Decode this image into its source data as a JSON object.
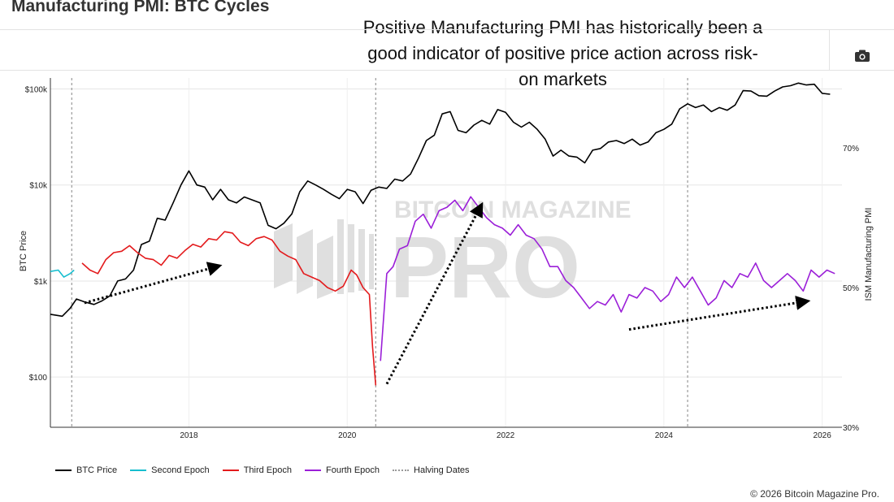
{
  "header": {
    "title": "Manufacturing PMI: BTC Cycles",
    "annotation": "Positive Manufacturing PMI has historically been a good indicator of positive price action across risk-on markets",
    "camera_icon": "camera-icon"
  },
  "watermark": {
    "line1": "BITCOIN MAGAZINE",
    "line2": "PRO"
  },
  "copyright": "© 2026 Bitcoin Magazine Pro.",
  "colors": {
    "btc": "#000000",
    "second_epoch": "#17becf",
    "third_epoch": "#e31a1c",
    "fourth_epoch": "#9b1fd8",
    "halving": "#999999",
    "arrow": "#000000"
  },
  "chart_data": {
    "type": "line",
    "title": "Manufacturing PMI: BTC Cycles",
    "xlim": [
      2016.25,
      2026.25
    ],
    "x_ticks": [
      2018,
      2020,
      2022,
      2024,
      2026
    ],
    "y_left": {
      "label": "BTC Price",
      "scale": "log",
      "range": [
        30,
        130000
      ],
      "ticks": [
        100,
        1000,
        10000,
        100000
      ],
      "tick_labels": [
        "$100",
        "$1k",
        "$10k",
        "$100k"
      ]
    },
    "y_right": {
      "label": "ISM Manufacturing PMI",
      "range": [
        30,
        80
      ],
      "ticks": [
        30,
        50,
        70
      ],
      "tick_labels": [
        "30%",
        "50%",
        "70%"
      ]
    },
    "halving_dates": [
      2016.52,
      2020.36,
      2024.3
    ],
    "series": [
      {
        "name": "BTC Price",
        "axis": "left",
        "points": [
          [
            2016.25,
            450
          ],
          [
            2016.4,
            430
          ],
          [
            2016.5,
            520
          ],
          [
            2016.58,
            650
          ],
          [
            2016.67,
            610
          ],
          [
            2016.8,
            570
          ],
          [
            2016.9,
            620
          ],
          [
            2017.0,
            700
          ],
          [
            2017.1,
            1000
          ],
          [
            2017.2,
            1050
          ],
          [
            2017.3,
            1300
          ],
          [
            2017.4,
            2400
          ],
          [
            2017.5,
            2600
          ],
          [
            2017.6,
            4500
          ],
          [
            2017.7,
            4300
          ],
          [
            2017.8,
            6500
          ],
          [
            2017.9,
            10000
          ],
          [
            2018.0,
            14000
          ],
          [
            2018.1,
            10000
          ],
          [
            2018.2,
            9500
          ],
          [
            2018.3,
            7000
          ],
          [
            2018.4,
            9000
          ],
          [
            2018.5,
            7000
          ],
          [
            2018.6,
            6500
          ],
          [
            2018.7,
            7500
          ],
          [
            2018.9,
            6500
          ],
          [
            2019.0,
            3800
          ],
          [
            2019.1,
            3500
          ],
          [
            2019.2,
            4000
          ],
          [
            2019.3,
            5000
          ],
          [
            2019.4,
            8500
          ],
          [
            2019.5,
            11000
          ],
          [
            2019.6,
            10000
          ],
          [
            2019.7,
            9000
          ],
          [
            2019.8,
            8000
          ],
          [
            2019.9,
            7200
          ],
          [
            2020.0,
            9000
          ],
          [
            2020.1,
            8500
          ],
          [
            2020.2,
            6400
          ],
          [
            2020.3,
            8800
          ],
          [
            2020.4,
            9500
          ],
          [
            2020.5,
            9200
          ],
          [
            2020.6,
            11500
          ],
          [
            2020.7,
            11000
          ],
          [
            2020.8,
            13000
          ],
          [
            2020.9,
            19000
          ],
          [
            2021.0,
            29000
          ],
          [
            2021.1,
            33000
          ],
          [
            2021.2,
            55000
          ],
          [
            2021.3,
            58000
          ],
          [
            2021.4,
            37000
          ],
          [
            2021.5,
            35000
          ],
          [
            2021.6,
            42000
          ],
          [
            2021.7,
            47000
          ],
          [
            2021.8,
            43000
          ],
          [
            2021.9,
            61000
          ],
          [
            2022.0,
            57000
          ],
          [
            2022.1,
            45000
          ],
          [
            2022.2,
            40000
          ],
          [
            2022.3,
            45000
          ],
          [
            2022.4,
            38000
          ],
          [
            2022.5,
            30000
          ],
          [
            2022.6,
            20000
          ],
          [
            2022.7,
            23000
          ],
          [
            2022.8,
            20000
          ],
          [
            2022.9,
            19500
          ],
          [
            2023.0,
            17000
          ],
          [
            2023.1,
            23000
          ],
          [
            2023.2,
            24000
          ],
          [
            2023.3,
            28000
          ],
          [
            2023.4,
            29000
          ],
          [
            2023.5,
            27000
          ],
          [
            2023.6,
            30000
          ],
          [
            2023.7,
            26000
          ],
          [
            2023.8,
            28000
          ],
          [
            2023.9,
            35000
          ],
          [
            2024.0,
            38000
          ],
          [
            2024.1,
            43000
          ],
          [
            2024.2,
            62000
          ],
          [
            2024.3,
            70000
          ],
          [
            2024.4,
            64000
          ],
          [
            2024.5,
            68000
          ],
          [
            2024.6,
            58000
          ],
          [
            2024.7,
            64000
          ],
          [
            2024.8,
            60000
          ],
          [
            2024.9,
            68000
          ],
          [
            2025.0,
            96000
          ],
          [
            2025.1,
            95000
          ],
          [
            2025.2,
            85000
          ],
          [
            2025.3,
            84000
          ],
          [
            2025.4,
            95000
          ],
          [
            2025.5,
            105000
          ],
          [
            2025.6,
            108000
          ],
          [
            2025.7,
            115000
          ],
          [
            2025.8,
            110000
          ],
          [
            2025.9,
            112000
          ],
          [
            2026.0,
            90000
          ],
          [
            2026.1,
            88000
          ]
        ]
      },
      {
        "name": "Second Epoch",
        "axis": "right",
        "points": [
          [
            2016.25,
            52.3
          ],
          [
            2016.35,
            52.5
          ],
          [
            2016.42,
            51.5
          ],
          [
            2016.5,
            52.0
          ],
          [
            2016.55,
            52.5
          ]
        ]
      },
      {
        "name": "Third Epoch",
        "axis": "right",
        "points": [
          [
            2016.65,
            53.5
          ],
          [
            2016.75,
            52.5
          ],
          [
            2016.85,
            52.0
          ],
          [
            2016.95,
            54.0
          ],
          [
            2017.05,
            55.0
          ],
          [
            2017.15,
            55.2
          ],
          [
            2017.25,
            56.0
          ],
          [
            2017.35,
            55.0
          ],
          [
            2017.45,
            54.2
          ],
          [
            2017.55,
            54.0
          ],
          [
            2017.65,
            53.2
          ],
          [
            2017.75,
            54.6
          ],
          [
            2017.85,
            54.2
          ],
          [
            2017.95,
            55.3
          ],
          [
            2018.05,
            56.2
          ],
          [
            2018.15,
            55.8
          ],
          [
            2018.25,
            57.0
          ],
          [
            2018.35,
            56.8
          ],
          [
            2018.45,
            58.0
          ],
          [
            2018.55,
            57.8
          ],
          [
            2018.65,
            56.5
          ],
          [
            2018.75,
            56.0
          ],
          [
            2018.85,
            57.0
          ],
          [
            2018.95,
            57.3
          ],
          [
            2019.05,
            56.8
          ],
          [
            2019.15,
            55.2
          ],
          [
            2019.25,
            54.5
          ],
          [
            2019.35,
            54.0
          ],
          [
            2019.45,
            52.0
          ],
          [
            2019.55,
            51.5
          ],
          [
            2019.65,
            51.0
          ],
          [
            2019.75,
            50.0
          ],
          [
            2019.85,
            49.5
          ],
          [
            2019.95,
            50.2
          ],
          [
            2020.05,
            52.5
          ],
          [
            2020.12,
            51.8
          ],
          [
            2020.2,
            50.0
          ],
          [
            2020.28,
            49.0
          ],
          [
            2020.32,
            41.5
          ],
          [
            2020.36,
            36.0
          ]
        ]
      },
      {
        "name": "Fourth Epoch",
        "axis": "right",
        "points": [
          [
            2020.42,
            39.5
          ],
          [
            2020.5,
            52.0
          ],
          [
            2020.58,
            53.0
          ],
          [
            2020.66,
            55.5
          ],
          [
            2020.76,
            56.0
          ],
          [
            2020.86,
            59.5
          ],
          [
            2020.96,
            60.5
          ],
          [
            2021.06,
            58.5
          ],
          [
            2021.16,
            61.0
          ],
          [
            2021.26,
            61.5
          ],
          [
            2021.36,
            62.5
          ],
          [
            2021.46,
            61.0
          ],
          [
            2021.56,
            63.0
          ],
          [
            2021.66,
            61.5
          ],
          [
            2021.76,
            60.0
          ],
          [
            2021.86,
            59.0
          ],
          [
            2021.96,
            58.5
          ],
          [
            2022.06,
            57.5
          ],
          [
            2022.16,
            59.0
          ],
          [
            2022.26,
            57.5
          ],
          [
            2022.36,
            57.0
          ],
          [
            2022.46,
            55.5
          ],
          [
            2022.56,
            53.0
          ],
          [
            2022.66,
            53.0
          ],
          [
            2022.76,
            51.0
          ],
          [
            2022.86,
            50.0
          ],
          [
            2022.96,
            48.5
          ],
          [
            2023.06,
            47.0
          ],
          [
            2023.16,
            48.0
          ],
          [
            2023.26,
            47.5
          ],
          [
            2023.36,
            49.0
          ],
          [
            2023.46,
            46.5
          ],
          [
            2023.56,
            49.0
          ],
          [
            2023.66,
            48.5
          ],
          [
            2023.76,
            50.0
          ],
          [
            2023.86,
            49.5
          ],
          [
            2023.96,
            48.0
          ],
          [
            2024.06,
            49.0
          ],
          [
            2024.16,
            51.5
          ],
          [
            2024.26,
            50.0
          ],
          [
            2024.36,
            51.5
          ],
          [
            2024.46,
            49.5
          ],
          [
            2024.56,
            47.5
          ],
          [
            2024.66,
            48.5
          ],
          [
            2024.76,
            51.0
          ],
          [
            2024.86,
            50.0
          ],
          [
            2024.96,
            52.0
          ],
          [
            2025.06,
            51.5
          ],
          [
            2025.16,
            53.5
          ],
          [
            2025.26,
            51.0
          ],
          [
            2025.36,
            50.0
          ],
          [
            2025.46,
            51.0
          ],
          [
            2025.56,
            52.0
          ],
          [
            2025.66,
            51.0
          ],
          [
            2025.76,
            49.5
          ],
          [
            2025.86,
            52.5
          ],
          [
            2025.96,
            51.5
          ],
          [
            2026.06,
            52.5
          ],
          [
            2026.16,
            52.0
          ]
        ]
      }
    ],
    "trend_arrows": [
      {
        "from": [
          2016.68,
          47.8
        ],
        "to": [
          2018.35,
          53.0
        ]
      },
      {
        "from": [
          2020.5,
          36.2
        ],
        "to": [
          2021.68,
          61.5
        ]
      },
      {
        "from": [
          2023.56,
          44.0
        ],
        "to": [
          2025.78,
          48.0
        ]
      }
    ],
    "legend": [
      {
        "label": "BTC Price",
        "style": "solid",
        "color_key": "btc"
      },
      {
        "label": "Second Epoch",
        "style": "solid",
        "color_key": "second_epoch"
      },
      {
        "label": "Third Epoch",
        "style": "solid",
        "color_key": "third_epoch"
      },
      {
        "label": "Fourth Epoch",
        "style": "solid",
        "color_key": "fourth_epoch"
      },
      {
        "label": "Halving Dates",
        "style": "dotted",
        "color_key": "halving"
      }
    ]
  }
}
